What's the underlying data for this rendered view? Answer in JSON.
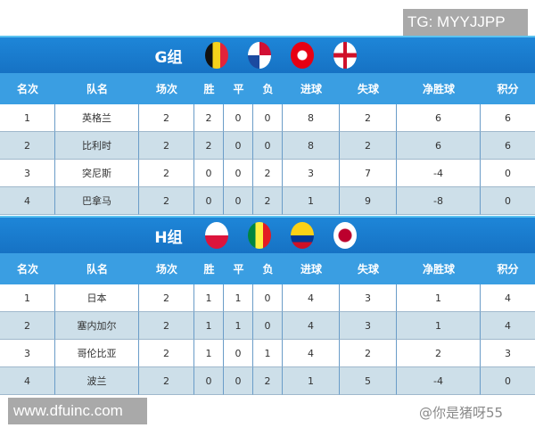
{
  "watermarks": {
    "tg": "TG: MYYJJPP",
    "site": "www.dfuinc.com",
    "author": "@你是猪呀55"
  },
  "columns": [
    "名次",
    "队名",
    "场次",
    "胜",
    "平",
    "负",
    "进球",
    "失球",
    "净胜球",
    "积分"
  ],
  "groups": [
    {
      "name": "G组",
      "flags": [
        "belgium-flag",
        "panama-flag",
        "tunisia-flag",
        "england-flag"
      ],
      "rows": [
        [
          "1",
          "英格兰",
          "2",
          "2",
          "0",
          "0",
          "8",
          "2",
          "6",
          "6"
        ],
        [
          "2",
          "比利时",
          "2",
          "2",
          "0",
          "0",
          "8",
          "2",
          "6",
          "6"
        ],
        [
          "3",
          "突尼斯",
          "2",
          "0",
          "0",
          "2",
          "3",
          "7",
          "-4",
          "0"
        ],
        [
          "4",
          "巴拿马",
          "2",
          "0",
          "0",
          "2",
          "1",
          "9",
          "-8",
          "0"
        ]
      ]
    },
    {
      "name": "H组",
      "flags": [
        "poland-flag",
        "senegal-flag",
        "colombia-flag",
        "japan-flag"
      ],
      "rows": [
        [
          "1",
          "日本",
          "2",
          "1",
          "1",
          "0",
          "4",
          "3",
          "1",
          "4"
        ],
        [
          "2",
          "塞内加尔",
          "2",
          "1",
          "1",
          "0",
          "4",
          "3",
          "1",
          "4"
        ],
        [
          "3",
          "哥伦比亚",
          "2",
          "1",
          "0",
          "1",
          "4",
          "2",
          "2",
          "3"
        ],
        [
          "4",
          "波兰",
          "2",
          "0",
          "0",
          "2",
          "1",
          "5",
          "-4",
          "0"
        ]
      ]
    }
  ]
}
